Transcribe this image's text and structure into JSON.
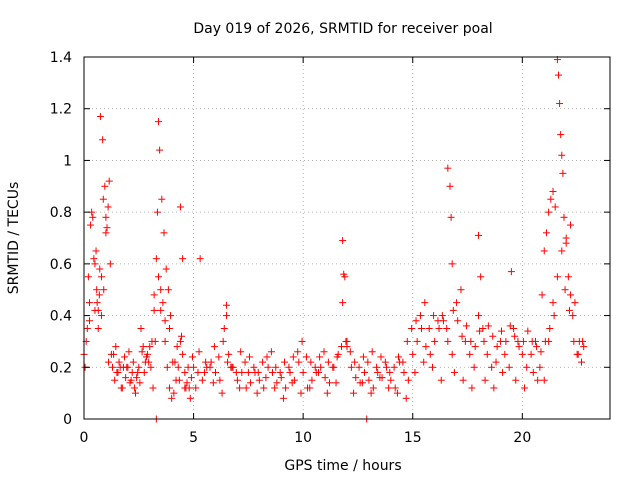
{
  "chart_data": {
    "type": "scatter",
    "title": "Day 019 of 2026, SRMTID for receiver poal",
    "xlabel": "GPS time / hours",
    "ylabel": "SRMTID / TECUs",
    "xlim": [
      0,
      24
    ],
    "ylim": [
      0,
      1.4
    ],
    "xticks": [
      "0",
      "5",
      "10",
      "15",
      "20"
    ],
    "xtick_values": [
      0,
      5,
      10,
      15,
      20
    ],
    "yticks": [
      "0",
      "0.2",
      "0.4",
      "0.6",
      "0.8",
      "1",
      "1.2",
      "1.4"
    ],
    "ytick_values": [
      0,
      0.2,
      0.4,
      0.6,
      0.8,
      1.0,
      1.2,
      1.4
    ],
    "grid": true,
    "marker": "+",
    "marker_color": "#ff0000",
    "series": [
      {
        "name": "SRMTID",
        "x": [
          0.0,
          0.1,
          0.2,
          0.3,
          0.4,
          0.5,
          0.6,
          0.7,
          0.8,
          0.9,
          1.0,
          1.1,
          1.2,
          1.3,
          1.4,
          1.5,
          1.6,
          1.7,
          1.8,
          1.9,
          2.0,
          2.1,
          2.2,
          2.3,
          2.4,
          2.5,
          2.6,
          2.7,
          2.8,
          2.9,
          3.0,
          3.1,
          3.2,
          3.3,
          3.4,
          3.5,
          3.6,
          3.7,
          3.8,
          3.9,
          4.0,
          4.1,
          4.2,
          4.3,
          4.4,
          4.5,
          4.6,
          4.7,
          4.8,
          4.9,
          5.0,
          5.2,
          5.4,
          5.6,
          5.8,
          6.0,
          6.2,
          6.4,
          6.5,
          6.6,
          6.8,
          7.0,
          7.2,
          7.4,
          7.6,
          7.8,
          8.0,
          8.2,
          8.4,
          8.6,
          8.8,
          9.0,
          9.2,
          9.4,
          9.6,
          9.8,
          10.0,
          10.2,
          10.4,
          10.6,
          10.8,
          11.0,
          11.2,
          11.4,
          11.6,
          11.8,
          11.9,
          12.0,
          12.2,
          12.4,
          12.6,
          12.8,
          13.0,
          13.2,
          13.4,
          13.6,
          13.8,
          14.0,
          14.2,
          14.4,
          14.6,
          14.8,
          15.0,
          15.2,
          15.4,
          15.6,
          15.8,
          16.0,
          16.2,
          16.4,
          16.6,
          16.8,
          17.0,
          17.2,
          17.4,
          17.6,
          17.8,
          18.0,
          18.2,
          18.4,
          18.6,
          18.8,
          19.0,
          19.2,
          19.4,
          19.6,
          19.8,
          20.0,
          20.2,
          20.4,
          20.6,
          20.8,
          21.0,
          21.2,
          21.4,
          21.6,
          21.8,
          22.0,
          22.2,
          22.4,
          22.6,
          22.8,
          0.05,
          0.25,
          0.35,
          0.55,
          0.65,
          0.75,
          0.85,
          0.95,
          1.05,
          1.15,
          3.2,
          3.35,
          3.4,
          3.45,
          3.55,
          3.65,
          3.75,
          3.85,
          4.4,
          4.5,
          5.3,
          6.5,
          11.8,
          11.85,
          12.0,
          16.6,
          16.7,
          16.75,
          16.8,
          18.0,
          18.1,
          19.5,
          20.9,
          21.0,
          21.1,
          21.2,
          21.3,
          21.4,
          21.5,
          21.6,
          21.65,
          21.7,
          21.75,
          21.8,
          21.85,
          21.9,
          22.0,
          22.1,
          22.2,
          22.3,
          0.15,
          0.45,
          0.58,
          0.72,
          0.88,
          1.12,
          1.35,
          1.55,
          1.75,
          1.95,
          2.15,
          2.35,
          2.55,
          2.75,
          2.95,
          3.15,
          3.95,
          4.15,
          4.35,
          4.65,
          4.85,
          5.1,
          5.5,
          5.9,
          6.3,
          6.7,
          7.1,
          7.5,
          7.9,
          8.3,
          8.7,
          9.1,
          9.5,
          9.9,
          10.3,
          10.7,
          11.1,
          11.5,
          12.3,
          12.7,
          13.1,
          13.5,
          13.9,
          14.3,
          14.7,
          15.1,
          15.5,
          15.9,
          16.3,
          16.9,
          17.3,
          17.7,
          18.3,
          18.7,
          19.1,
          19.7,
          20.1,
          20.5,
          20.7,
          22.5,
          22.7,
          0.25,
          0.5,
          0.65,
          0.8,
          1.0,
          1.25,
          1.45,
          1.65,
          1.85,
          2.05,
          2.25,
          2.45,
          2.65,
          2.85,
          3.05,
          3.25,
          3.5,
          3.7,
          3.9,
          4.05,
          4.25,
          4.45,
          4.6,
          4.75,
          4.95,
          5.25,
          5.55,
          5.75,
          5.95,
          6.15,
          6.35,
          6.55,
          6.75,
          6.95,
          7.15,
          7.35,
          7.55,
          7.75,
          7.95,
          8.15,
          8.35,
          8.55,
          8.75,
          8.95,
          9.15,
          9.35,
          9.55,
          9.75,
          9.95,
          10.15,
          10.35,
          10.55,
          10.75,
          10.95,
          11.15,
          11.35,
          11.55,
          11.75,
          11.95,
          12.15,
          12.35,
          12.55,
          12.75,
          12.95,
          13.15,
          13.35,
          13.55,
          13.75,
          13.95,
          14.15,
          14.35,
          14.55,
          14.75,
          14.95,
          15.15,
          15.35,
          15.55,
          15.75,
          15.95,
          16.15,
          16.35,
          16.55,
          16.85,
          17.05,
          17.25,
          17.45,
          17.65,
          17.85,
          18.05,
          18.25,
          18.45,
          18.65,
          18.85,
          19.05,
          19.25,
          19.45,
          19.65,
          19.85,
          20.05,
          20.25,
          20.45,
          20.65,
          20.85,
          21.05,
          21.25,
          21.45,
          21.95,
          22.15,
          22.35,
          22.55,
          22.75,
          12.9,
          3.3
        ],
        "y": [
          0.25,
          0.3,
          0.55,
          0.75,
          0.78,
          0.6,
          0.45,
          0.48,
          0.4,
          0.5,
          0.72,
          0.82,
          0.6,
          0.2,
          0.15,
          0.18,
          0.22,
          0.12,
          0.2,
          0.16,
          0.2,
          0.14,
          0.18,
          0.12,
          0.16,
          0.2,
          0.35,
          0.28,
          0.22,
          0.25,
          0.28,
          0.3,
          0.48,
          0.62,
          0.55,
          0.5,
          0.45,
          0.3,
          0.2,
          0.12,
          0.08,
          0.1,
          0.15,
          0.2,
          0.3,
          0.25,
          0.18,
          0.14,
          0.12,
          0.16,
          0.2,
          0.18,
          0.15,
          0.2,
          0.22,
          0.18,
          0.15,
          0.35,
          0.4,
          0.25,
          0.2,
          0.15,
          0.18,
          0.12,
          0.14,
          0.18,
          0.15,
          0.12,
          0.2,
          0.18,
          0.14,
          0.16,
          0.12,
          0.18,
          0.15,
          0.22,
          0.18,
          0.12,
          0.15,
          0.18,
          0.2,
          0.16,
          0.14,
          0.2,
          0.25,
          0.45,
          0.55,
          0.3,
          0.2,
          0.16,
          0.14,
          0.18,
          0.15,
          0.12,
          0.18,
          0.16,
          0.2,
          0.15,
          0.12,
          0.22,
          0.18,
          0.15,
          0.25,
          0.3,
          0.35,
          0.28,
          0.25,
          0.3,
          0.35,
          0.38,
          0.3,
          0.25,
          0.45,
          0.5,
          0.3,
          0.25,
          0.2,
          0.4,
          0.35,
          0.25,
          0.2,
          0.22,
          0.3,
          0.25,
          0.2,
          0.35,
          0.3,
          0.25,
          0.2,
          0.25,
          0.3,
          0.2,
          0.15,
          0.3,
          0.45,
          0.55,
          0.65,
          0.7,
          0.75,
          0.45,
          0.3,
          0.28,
          0.2,
          0.38,
          0.8,
          0.65,
          0.42,
          1.17,
          1.08,
          0.9,
          0.74,
          0.92,
          0.42,
          0.8,
          1.15,
          1.04,
          0.85,
          0.72,
          0.58,
          0.5,
          0.82,
          0.62,
          0.62,
          0.44,
          0.69,
          0.56,
          0.28,
          0.97,
          0.9,
          0.78,
          0.6,
          0.71,
          0.55,
          0.57,
          0.48,
          0.65,
          0.72,
          0.8,
          0.85,
          0.88,
          0.82,
          1.39,
          1.33,
          1.22,
          1.1,
          1.02,
          0.95,
          0.78,
          0.68,
          0.55,
          0.48,
          0.4,
          0.35,
          0.62,
          0.5,
          0.58,
          0.85,
          0.22,
          0.25,
          0.18,
          0.12,
          0.2,
          0.15,
          0.1,
          0.14,
          0.18,
          0.22,
          0.12,
          0.4,
          0.22,
          0.15,
          0.12,
          0.08,
          0.12,
          0.18,
          0.14,
          0.1,
          0.2,
          0.12,
          0.18,
          0.1,
          0.16,
          0.12,
          0.08,
          0.14,
          0.1,
          0.12,
          0.18,
          0.1,
          0.14,
          0.1,
          0.14,
          0.1,
          0.16,
          0.12,
          0.1,
          0.08,
          0.18,
          0.22,
          0.2,
          0.15,
          0.18,
          0.15,
          0.12,
          0.15,
          0.12,
          0.18,
          0.15,
          0.12,
          0.18,
          0.15,
          0.25,
          0.22,
          0.45,
          0.42,
          0.35,
          0.55,
          0.78,
          0.25,
          0.28,
          0.2,
          0.24,
          0.26,
          0.22,
          0.18,
          0.26,
          0.24,
          0.2,
          0.3,
          0.42,
          0.38,
          0.35,
          0.22,
          0.28,
          0.32,
          0.12,
          0.2,
          0.24,
          0.26,
          0.22,
          0.2,
          0.28,
          0.24,
          0.3,
          0.22,
          0.2,
          0.18,
          0.26,
          0.22,
          0.24,
          0.2,
          0.18,
          0.22,
          0.24,
          0.26,
          0.2,
          0.18,
          0.22,
          0.2,
          0.24,
          0.26,
          0.3,
          0.24,
          0.22,
          0.2,
          0.24,
          0.26,
          0.22,
          0.2,
          0.24,
          0.28,
          0.3,
          0.26,
          0.22,
          0.2,
          0.24,
          0.22,
          0.26,
          0.2,
          0.24,
          0.22,
          0.18,
          0.2,
          0.24,
          0.22,
          0.3,
          0.35,
          0.38,
          0.4,
          0.45,
          0.35,
          0.4,
          0.38,
          0.4,
          0.35,
          0.42,
          0.38,
          0.32,
          0.36,
          0.3,
          0.28,
          0.34,
          0.3,
          0.36,
          0.32,
          0.28,
          0.34,
          0.3,
          0.36,
          0.32,
          0.28,
          0.3,
          0.34,
          0.3,
          0.28,
          0.26,
          0.3,
          0.35,
          0.4,
          0.5,
          0.42,
          0.3,
          0.25,
          0.3,
          0.0,
          0.0
        ]
      }
    ]
  }
}
